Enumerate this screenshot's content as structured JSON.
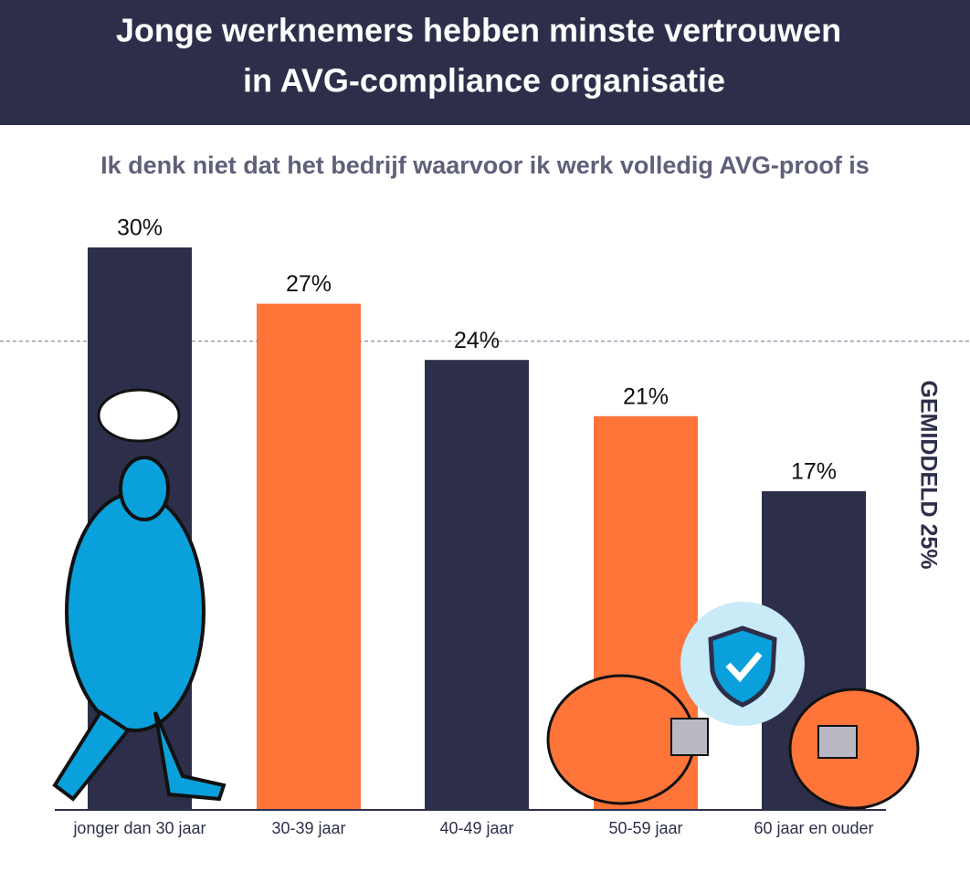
{
  "chart_data": {
    "type": "bar",
    "title": [
      "Jonge werknemers hebben minste vertrouwen",
      "in AVG-compliance organisatie"
    ],
    "subtitle": "Ik denk niet dat het bedrijf waarvoor ik werk volledig AVG-proof is",
    "categories": [
      "jonger dan 30 jaar",
      "30-39 jaar",
      "40-49 jaar",
      "50-59 jaar",
      "60 jaar en ouder"
    ],
    "values": [
      30,
      27,
      24,
      21,
      17
    ],
    "value_labels": [
      "30%",
      "27%",
      "24%",
      "21%",
      "17%"
    ],
    "colors": [
      "#2d2f4a",
      "#ff7438",
      "#2d2f4a",
      "#ff7438",
      "#2d2f4a"
    ],
    "ylim": [
      0,
      30
    ],
    "average": {
      "value": 25,
      "label": "GEMIDDELD 25%"
    }
  }
}
